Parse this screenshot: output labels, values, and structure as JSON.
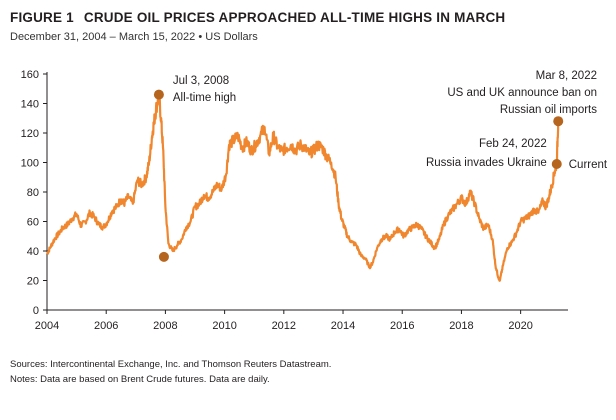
{
  "header": {
    "figure_label": "FIGURE 1",
    "title": "CRUDE OIL PRICES APPROACHED ALL-TIME HIGHS IN MARCH",
    "subtitle": "December 31, 2004 – March 15, 2022 • US Dollars"
  },
  "footer": {
    "sources": "Sources: Intercontinental Exchange, Inc. and Thomson Reuters Datastream.",
    "notes": "Notes: Data are based on Brent Crude futures. Data are daily."
  },
  "colors": {
    "line": "#F0862E",
    "marker": "#B5651D",
    "axis": "#231f20"
  },
  "chart_data": {
    "type": "line",
    "title": "",
    "xlabel": "",
    "ylabel": "",
    "xlim": [
      2004.0,
      2021.6
    ],
    "ylim": [
      0,
      160
    ],
    "x_ticks": [
      2004,
      2006,
      2008,
      2010,
      2012,
      2014,
      2016,
      2018,
      2020
    ],
    "y_ticks": [
      0,
      20,
      40,
      60,
      80,
      100,
      120,
      140,
      160
    ],
    "grid": false,
    "legend": "none",
    "series": [
      {
        "x": [
          2004.0,
          2004.1,
          2004.25,
          2004.4,
          2004.55,
          2004.7,
          2004.85,
          2005.0,
          2005.15,
          2005.3,
          2005.45,
          2005.6,
          2005.75,
          2005.9,
          2006.05,
          2006.2,
          2006.35,
          2006.5,
          2006.6,
          2006.75,
          2006.9,
          2007.05,
          2007.2,
          2007.35,
          2007.45,
          2007.55,
          2007.62,
          2007.7,
          2007.78,
          2007.85,
          2007.92,
          2008.0,
          2008.1,
          2008.25,
          2008.4,
          2008.55,
          2008.7,
          2008.85,
          2009.0,
          2009.15,
          2009.3,
          2009.45,
          2009.6,
          2009.75,
          2009.9,
          2010.05,
          2010.15,
          2010.3,
          2010.45,
          2010.6,
          2010.75,
          2010.9,
          2011.05,
          2011.2,
          2011.35,
          2011.5,
          2011.65,
          2011.8,
          2011.95,
          2012.1,
          2012.25,
          2012.4,
          2012.55,
          2012.7,
          2012.85,
          2013.0,
          2013.15,
          2013.3,
          2013.45,
          2013.6,
          2013.75,
          2013.85,
          2013.95,
          2014.05,
          2014.15,
          2014.3,
          2014.45,
          2014.6,
          2014.75,
          2014.9,
          2015.0,
          2015.15,
          2015.3,
          2015.45,
          2015.6,
          2015.75,
          2015.9,
          2016.05,
          2016.2,
          2016.35,
          2016.5,
          2016.65,
          2016.8,
          2016.95,
          2017.1,
          2017.25,
          2017.4,
          2017.55,
          2017.7,
          2017.85,
          2018.0,
          2018.15,
          2018.3,
          2018.45,
          2018.6,
          2018.75,
          2018.9,
          2019.05,
          2019.15,
          2019.25,
          2019.3,
          2019.4,
          2019.55,
          2019.7,
          2019.85,
          2020.0,
          2020.15,
          2020.3,
          2020.45,
          2020.6,
          2020.75,
          2020.85,
          2020.95,
          2021.05,
          2021.15,
          2021.22,
          2021.27
        ],
        "y": [
          38,
          42,
          48,
          52,
          56,
          58,
          62,
          65,
          57,
          60,
          66,
          63,
          58,
          56,
          60,
          67,
          70,
          75,
          72,
          77,
          72,
          88,
          85,
          90,
          100,
          118,
          128,
          138,
          146,
          130,
          110,
          70,
          45,
          40,
          44,
          48,
          56,
          60,
          70,
          72,
          78,
          76,
          80,
          85,
          82,
          92,
          112,
          115,
          118,
          110,
          114,
          108,
          112,
          118,
          124,
          106,
          118,
          110,
          108,
          110,
          112,
          108,
          112,
          110,
          106,
          108,
          112,
          110,
          104,
          100,
          90,
          72,
          62,
          56,
          50,
          46,
          44,
          37,
          35,
          29,
          32,
          42,
          48,
          50,
          48,
          53,
          55,
          50,
          54,
          56,
          58,
          55,
          50,
          46,
          42,
          48,
          58,
          64,
          68,
          72,
          76,
          72,
          80,
          72,
          62,
          55,
          58,
          48,
          30,
          22,
          20,
          30,
          42,
          46,
          52,
          60,
          62,
          64,
          68,
          66,
          74,
          70,
          76,
          84,
          94,
          99,
          128
        ]
      }
    ],
    "annotations": [
      {
        "date_label": "Jul 3, 2008",
        "text": "All-time high",
        "x": 2007.78,
        "y": 146
      },
      {
        "date_label": "Mar 8, 2022",
        "text_lines": [
          "US and UK announce ban on",
          "Russian oil imports"
        ],
        "x": 2021.27,
        "y": 128
      },
      {
        "date_label": "Feb 24, 2022",
        "text": "Russia invades Ukraine",
        "x": 2021.22,
        "y": 99
      }
    ],
    "extra_markers": [
      {
        "x": 2007.95,
        "y": 36
      }
    ],
    "current_label": "Current"
  }
}
